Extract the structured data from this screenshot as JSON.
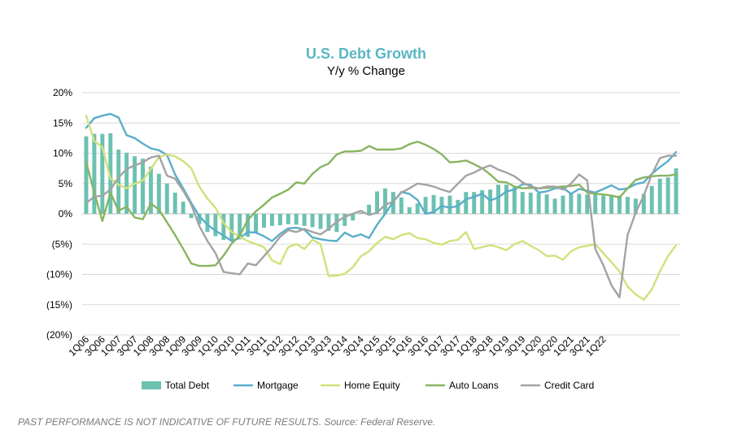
{
  "chart_data": {
    "type": "bar+line",
    "title": "U.S. Debt Growth",
    "subtitle": "Y/y % Change",
    "ylim": [
      -0.2,
      0.2
    ],
    "yticks": [
      0.2,
      0.15,
      0.1,
      0.05,
      0.0,
      -0.05,
      -0.1,
      -0.15,
      -0.2
    ],
    "ytick_labels": [
      "20%",
      "15%",
      "10%",
      "5%",
      "0%",
      "(5%)",
      "(10%)",
      "(15%)",
      "(20%)"
    ],
    "x_tick_labels": [
      "1Q06",
      "3Q06",
      "1Q07",
      "3Q07",
      "1Q08",
      "3Q08",
      "1Q09",
      "3Q09",
      "1Q10",
      "3Q10",
      "1Q11",
      "3Q11",
      "1Q12",
      "3Q12",
      "1Q13",
      "3Q13",
      "1Q14",
      "3Q14",
      "1Q15",
      "3Q15",
      "1Q16",
      "3Q16",
      "1Q17",
      "3Q17",
      "1Q18",
      "3Q18",
      "1Q19",
      "3Q19",
      "1Q20",
      "3Q20",
      "1Q21",
      "3Q21",
      "1Q22"
    ],
    "x_start": "1Q06",
    "x_end": "1Q22",
    "grid": "horizontal",
    "legend_position": "bottom",
    "series": [
      {
        "name": "Total Debt",
        "kind": "bar",
        "color": "#6cc1b1",
        "values": [
          12.8,
          13.2,
          13.2,
          13.3,
          10.6,
          10.1,
          9.5,
          9.1,
          7.8,
          6.6,
          5.0,
          3.5,
          2.0,
          -0.7,
          -1.7,
          -3.0,
          -3.7,
          -4.3,
          -4.5,
          -4.2,
          -3.8,
          -3.2,
          -2.3,
          -2.0,
          -1.9,
          -1.7,
          -1.8,
          -2.0,
          -2.2,
          -2.5,
          -2.8,
          -3.0,
          -2.0,
          -1.1,
          0.2,
          1.5,
          3.7,
          4.2,
          3.6,
          2.7,
          1.1,
          1.7,
          2.8,
          3.1,
          2.8,
          3.0,
          2.3,
          3.6,
          3.6,
          3.9,
          4.0,
          4.8,
          4.8,
          4.4,
          3.6,
          3.5,
          3.4,
          3.2,
          2.5,
          3.0,
          3.3,
          3.3,
          3.2,
          3.3,
          3.0,
          2.9,
          3.0,
          2.8,
          2.5,
          3.3,
          4.6,
          5.8,
          6.0,
          7.5
        ]
      },
      {
        "name": "Mortgage",
        "kind": "line",
        "color": "#5aaec9",
        "values": [
          14.2,
          15.8,
          16.2,
          16.5,
          15.9,
          13.0,
          12.5,
          11.6,
          10.8,
          10.5,
          9.7,
          6.5,
          4.2,
          1.8,
          -0.4,
          -1.8,
          -2.8,
          -3.6,
          -4.5,
          -4.0,
          -3.0,
          -3.1,
          -3.7,
          -4.5,
          -3.3,
          -2.4,
          -2.3,
          -2.6,
          -3.9,
          -4.2,
          -4.4,
          -4.5,
          -3.1,
          -3.8,
          -3.4,
          -4.0,
          -1.8,
          0.0,
          2.0,
          3.6,
          3.3,
          2.3,
          0.0,
          0.3,
          1.3,
          1.0,
          1.3,
          2.4,
          2.8,
          3.3,
          2.2,
          2.7,
          3.7,
          4.0,
          4.9,
          4.8,
          3.5,
          3.7,
          4.2,
          4.3,
          3.3,
          4.1,
          3.8,
          3.5,
          4.1,
          4.7,
          4.0,
          4.2,
          4.9,
          5.2,
          6.6,
          7.7,
          8.7,
          10.2
        ]
      },
      {
        "name": "Home Equity",
        "kind": "line",
        "color": "#cfe27a",
        "values": [
          16.2,
          12.0,
          11.0,
          5.8,
          4.8,
          4.2,
          5.0,
          5.5,
          7.4,
          9.4,
          9.8,
          9.5,
          8.7,
          7.5,
          4.5,
          2.5,
          1.0,
          -1.5,
          -3.0,
          -3.8,
          -4.5,
          -5.0,
          -5.5,
          -7.7,
          -8.3,
          -5.5,
          -5.0,
          -5.8,
          -4.3,
          -5.0,
          -10.3,
          -10.2,
          -9.9,
          -8.8,
          -7.0,
          -6.2,
          -4.8,
          -3.8,
          -4.2,
          -3.5,
          -3.2,
          -4.0,
          -4.2,
          -4.8,
          -5.1,
          -4.5,
          -4.3,
          -3.0,
          -5.8,
          -5.5,
          -5.2,
          -5.5,
          -6.0,
          -5.0,
          -4.5,
          -5.3,
          -6.0,
          -7.0,
          -6.9,
          -7.6,
          -6.2,
          -5.5,
          -5.3,
          -5.0,
          -6.5,
          -8.0,
          -9.5,
          -12.0,
          -13.3,
          -14.2,
          -12.5,
          -9.5,
          -7.0,
          -5.2
        ]
      },
      {
        "name": "Auto Loans",
        "kind": "line",
        "color": "#88b460",
        "values": [
          8.5,
          3.5,
          -1.2,
          3.5,
          0.5,
          1.2,
          -0.6,
          -0.9,
          1.7,
          0.7,
          -1.4,
          -3.5,
          -5.8,
          -8.2,
          -8.6,
          -8.6,
          -8.5,
          -6.9,
          -4.9,
          -3.6,
          -1.0,
          0.4,
          1.5,
          2.7,
          3.3,
          4.0,
          5.2,
          5.0,
          6.6,
          7.7,
          8.3,
          9.8,
          10.3,
          10.3,
          10.4,
          11.2,
          10.6,
          10.6,
          10.6,
          10.8,
          11.5,
          11.9,
          11.4,
          10.7,
          9.8,
          8.5,
          8.6,
          8.8,
          8.2,
          7.5,
          6.5,
          5.3,
          5.2,
          4.5,
          4.2,
          4.3,
          4.2,
          4.3,
          4.4,
          4.5,
          4.6,
          4.8,
          3.5,
          3.3,
          3.2,
          3.0,
          2.7,
          4.2,
          5.6,
          6.0,
          6.2,
          6.3,
          6.3,
          6.5
        ]
      },
      {
        "name": "Credit Card",
        "kind": "line",
        "color": "#a3a3a3",
        "values": [
          1.8,
          2.8,
          3.0,
          4.0,
          6.0,
          7.4,
          8.0,
          8.5,
          9.3,
          9.6,
          6.3,
          5.8,
          3.8,
          1.5,
          -2.0,
          -4.5,
          -6.5,
          -9.6,
          -9.8,
          -10.0,
          -8.2,
          -8.5,
          -7.0,
          -5.5,
          -3.8,
          -2.7,
          -3.0,
          -2.5,
          -3.0,
          -3.4,
          -2.5,
          -1.3,
          -0.5,
          0.0,
          0.5,
          -0.2,
          0.2,
          1.5,
          2.0,
          3.5,
          4.2,
          5.0,
          4.8,
          4.5,
          4.0,
          3.6,
          5.0,
          6.3,
          6.8,
          7.5,
          8.0,
          7.3,
          6.8,
          6.2,
          5.2,
          4.5,
          4.2,
          4.5,
          4.5,
          4.0,
          5.0,
          6.5,
          5.5,
          -5.8,
          -8.5,
          -11.8,
          -13.8,
          -3.5,
          0.2,
          3.0,
          6.5,
          9.2,
          9.6,
          9.6
        ]
      }
    ]
  },
  "legend": [
    {
      "label": "Total Debt",
      "icon": "bar-swatch"
    },
    {
      "label": "Mortgage",
      "icon": "line-swatch"
    },
    {
      "label": "Home Equity",
      "icon": "line-swatch"
    },
    {
      "label": "Auto Loans",
      "icon": "line-swatch"
    },
    {
      "label": "Credit Card",
      "icon": "line-swatch"
    }
  ],
  "footnote": "PAST PERFORMANCE IS NOT INDICATIVE OF FUTURE RESULTS. Source: Federal Reserve.",
  "colors": {
    "title": "#5ab6c6",
    "grid": "#d9d9d9",
    "axis": "#bfbfbf"
  }
}
